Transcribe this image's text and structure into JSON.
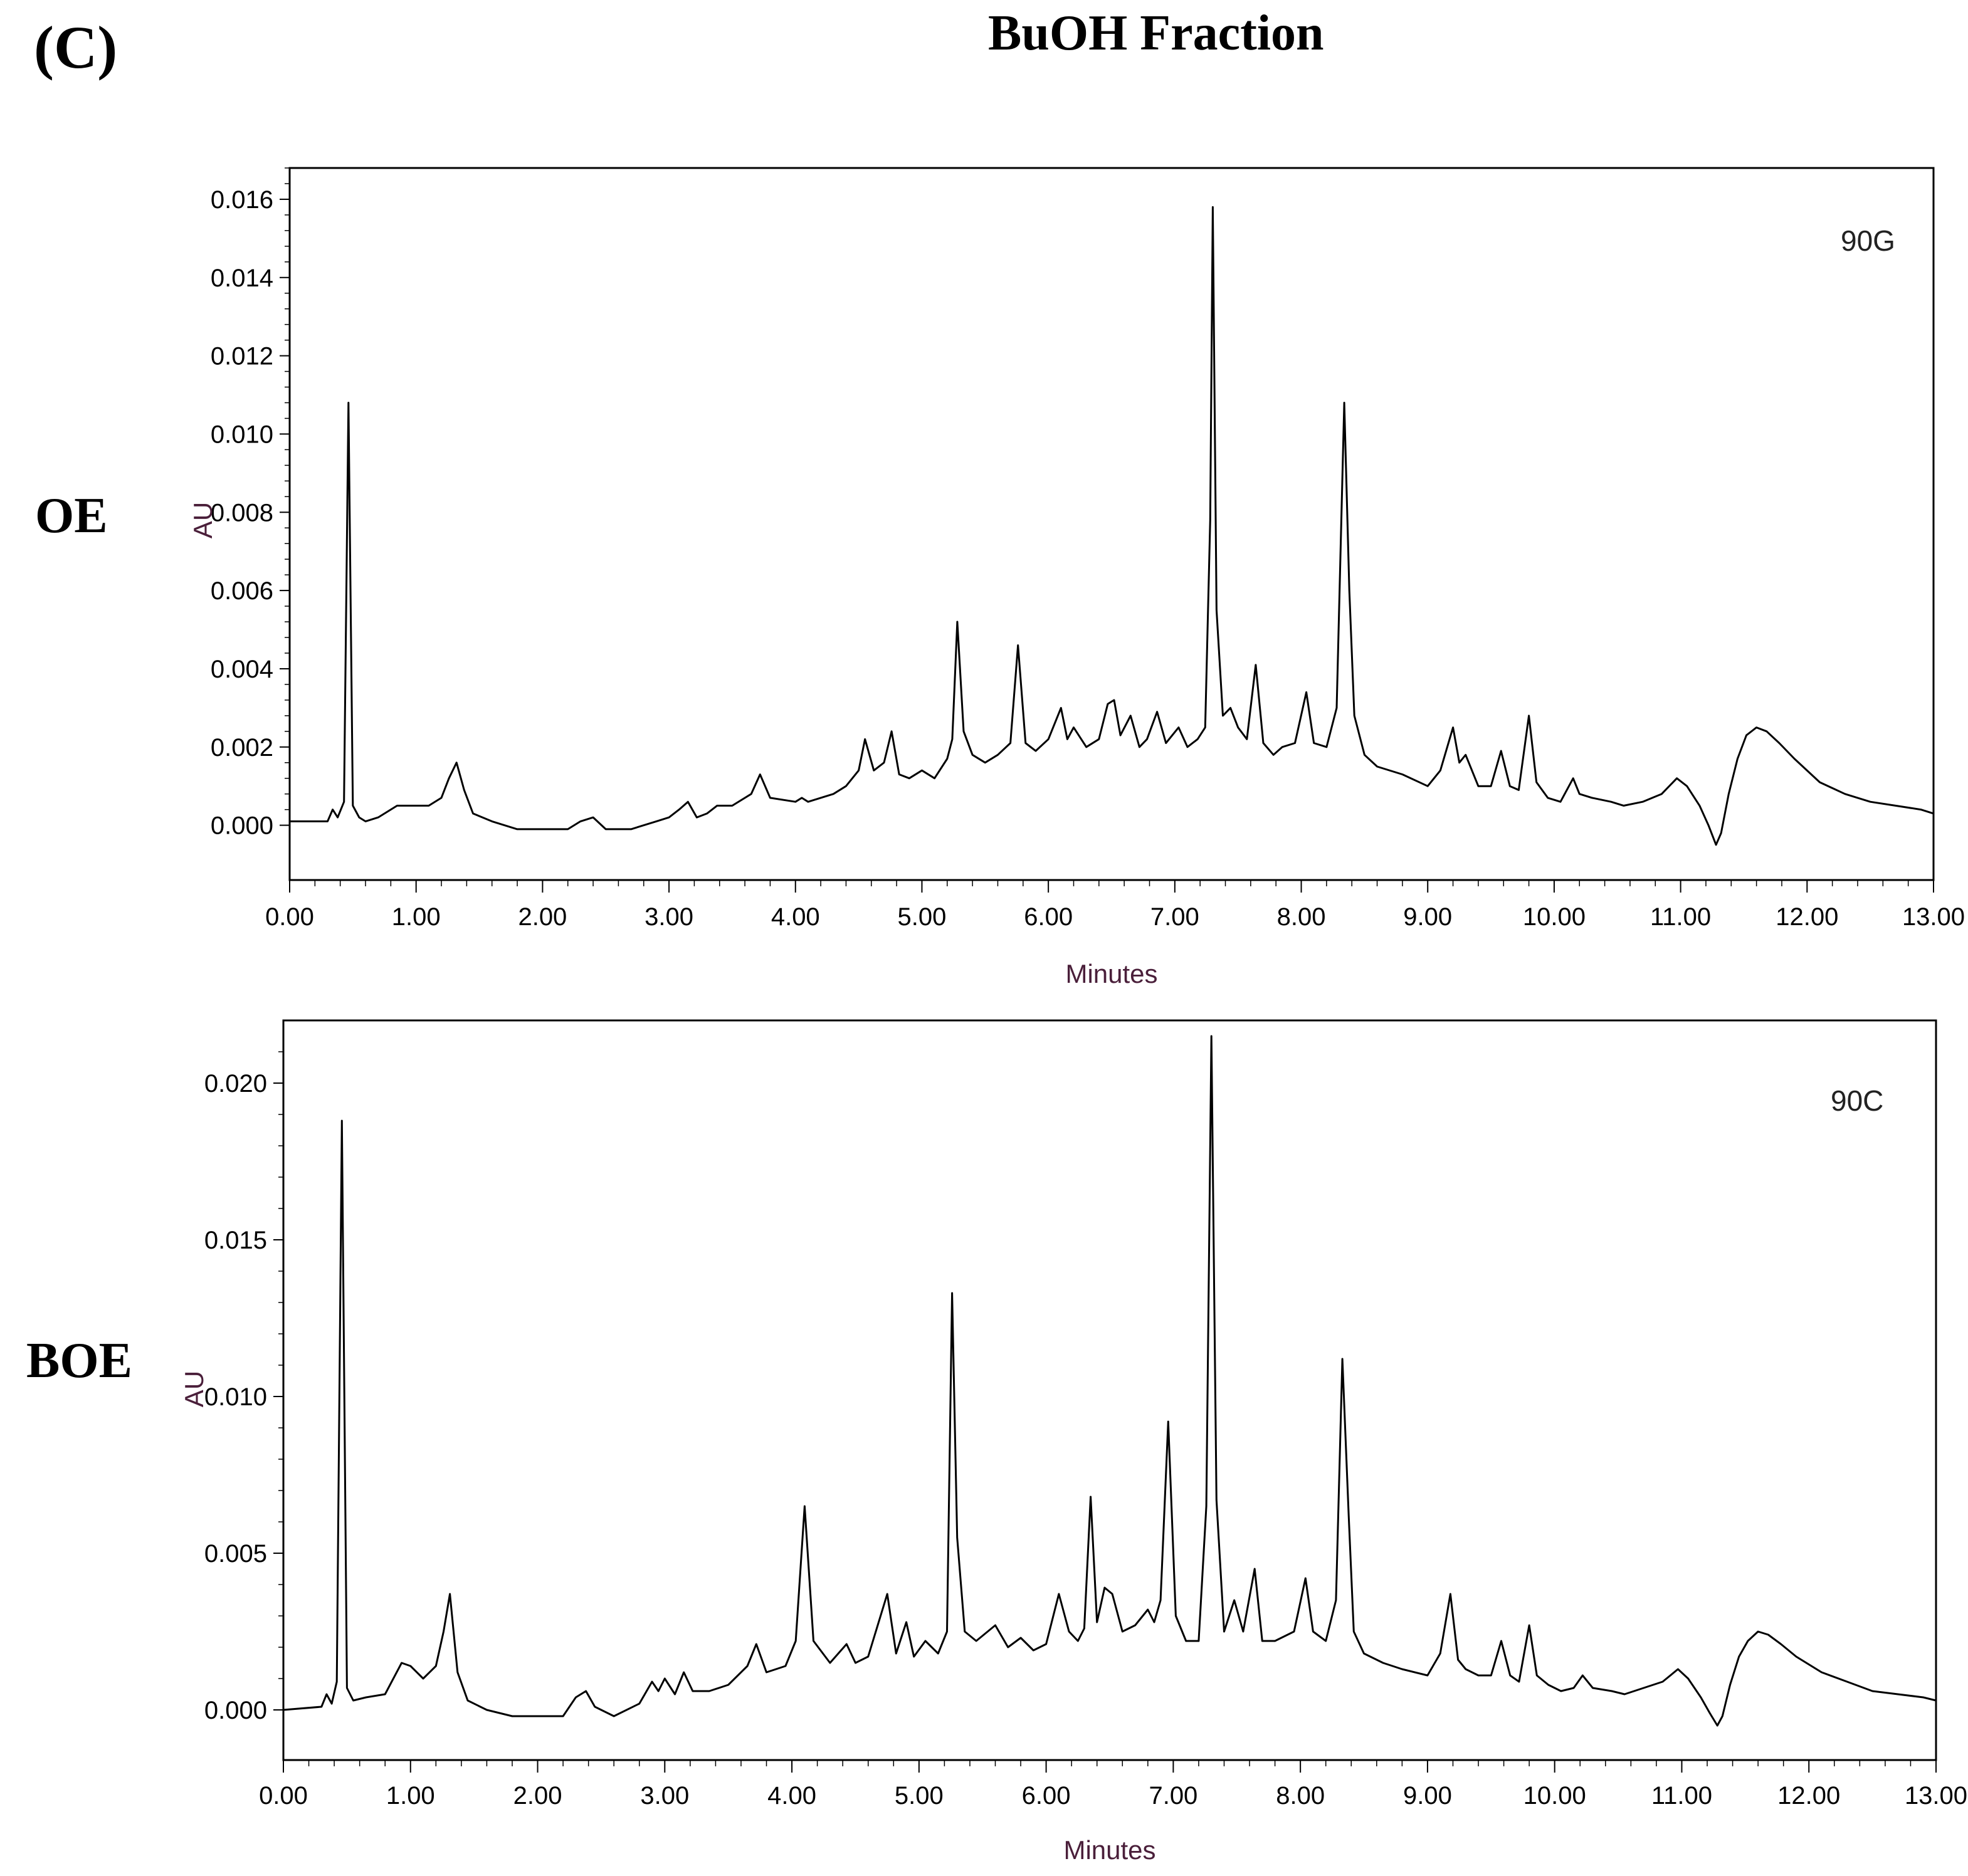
{
  "figure": {
    "panel_label": "(C)",
    "title": "BuOH Fraction",
    "row_labels": [
      "OE",
      "BOE"
    ]
  },
  "chart_data": [
    {
      "type": "line",
      "title": "",
      "annotation": "90G",
      "xlabel": "Minutes",
      "ylabel": "AU",
      "xlim": [
        0,
        13
      ],
      "ylim": [
        -0.0014,
        0.0168
      ],
      "xticks": [
        0,
        1,
        2,
        3,
        4,
        5,
        6,
        7,
        8,
        9,
        10,
        11,
        12,
        13
      ],
      "xtick_labels": [
        "0.00",
        "1.00",
        "2.00",
        "3.00",
        "4.00",
        "5.00",
        "6.00",
        "7.00",
        "8.00",
        "9.00",
        "10.00",
        "11.00",
        "12.00",
        "13.00"
      ],
      "yticks": [
        0,
        0.002,
        0.004,
        0.006,
        0.008,
        0.01,
        0.012,
        0.014,
        0.016
      ],
      "ytick_labels": [
        "0.000",
        "0.002",
        "0.004",
        "0.006",
        "0.008",
        "0.010",
        "0.012",
        "0.014",
        "0.016"
      ],
      "grid": false,
      "line_color": "#000000",
      "axis_label_color": "#4a1f3a",
      "series": [
        {
          "x": [
            0.0,
            0.3,
            0.34,
            0.38,
            0.43,
            0.465,
            0.5,
            0.55,
            0.6,
            0.7,
            0.85,
            0.95,
            1.1,
            1.2,
            1.26,
            1.32,
            1.38,
            1.45,
            1.6,
            1.8,
            2.0,
            2.2,
            2.3,
            2.4,
            2.5,
            2.7,
            2.9,
            3.0,
            3.08,
            3.15,
            3.22,
            3.3,
            3.38,
            3.5,
            3.65,
            3.72,
            3.8,
            4.0,
            4.05,
            4.1,
            4.2,
            4.3,
            4.4,
            4.5,
            4.55,
            4.62,
            4.7,
            4.76,
            4.82,
            4.9,
            5.0,
            5.1,
            5.2,
            5.24,
            5.28,
            5.33,
            5.4,
            5.5,
            5.6,
            5.7,
            5.76,
            5.82,
            5.9,
            6.0,
            6.1,
            6.15,
            6.2,
            6.3,
            6.4,
            6.47,
            6.52,
            6.57,
            6.65,
            6.72,
            6.78,
            6.86,
            6.93,
            7.03,
            7.1,
            7.18,
            7.24,
            7.28,
            7.3,
            7.33,
            7.38,
            7.44,
            7.5,
            7.57,
            7.64,
            7.7,
            7.78,
            7.85,
            7.95,
            8.04,
            8.1,
            8.2,
            8.28,
            8.34,
            8.38,
            8.42,
            8.5,
            8.6,
            8.8,
            9.0,
            9.1,
            9.2,
            9.25,
            9.3,
            9.4,
            9.5,
            9.58,
            9.65,
            9.72,
            9.8,
            9.86,
            9.95,
            10.05,
            10.15,
            10.2,
            10.3,
            10.45,
            10.55,
            10.7,
            10.85,
            10.97,
            11.05,
            11.15,
            11.22,
            11.28,
            11.32,
            11.38,
            11.45,
            11.52,
            11.6,
            11.68,
            11.78,
            11.9,
            12.1,
            12.3,
            12.5,
            12.7,
            12.9,
            13.0
          ],
          "y": [
            0.0001,
            0.0001,
            0.0004,
            0.0002,
            0.0006,
            0.0108,
            0.0005,
            0.0002,
            0.0001,
            0.0002,
            0.0005,
            0.0005,
            0.0005,
            0.0007,
            0.0012,
            0.0016,
            0.0009,
            0.0003,
            0.0001,
            -0.0001,
            -0.0001,
            -0.0001,
            0.0001,
            0.0002,
            -0.0001,
            -0.0001,
            0.0001,
            0.0002,
            0.0004,
            0.0006,
            0.0002,
            0.0003,
            0.0005,
            0.0005,
            0.0008,
            0.0013,
            0.0007,
            0.0006,
            0.0007,
            0.0006,
            0.0007,
            0.0008,
            0.001,
            0.0014,
            0.0022,
            0.0014,
            0.0016,
            0.0024,
            0.0013,
            0.0012,
            0.0014,
            0.0012,
            0.0017,
            0.0022,
            0.0052,
            0.0024,
            0.0018,
            0.0016,
            0.0018,
            0.0021,
            0.0046,
            0.0021,
            0.0019,
            0.0022,
            0.003,
            0.0022,
            0.0025,
            0.002,
            0.0022,
            0.0031,
            0.0032,
            0.0023,
            0.0028,
            0.002,
            0.0022,
            0.0029,
            0.0021,
            0.0025,
            0.002,
            0.0022,
            0.0025,
            0.0078,
            0.0158,
            0.0055,
            0.0028,
            0.003,
            0.0025,
            0.0022,
            0.0041,
            0.0021,
            0.0018,
            0.002,
            0.0021,
            0.0034,
            0.0021,
            0.002,
            0.003,
            0.0108,
            0.006,
            0.0028,
            0.0018,
            0.0015,
            0.0013,
            0.001,
            0.0014,
            0.0025,
            0.0016,
            0.0018,
            0.001,
            0.001,
            0.0019,
            0.001,
            0.0009,
            0.0028,
            0.0011,
            0.0007,
            0.0006,
            0.0012,
            0.0008,
            0.0007,
            0.0006,
            0.0005,
            0.0006,
            0.0008,
            0.0012,
            0.001,
            0.0005,
            0.0,
            -0.0005,
            -0.0002,
            0.0008,
            0.0017,
            0.0023,
            0.0025,
            0.0024,
            0.0021,
            0.0017,
            0.0011,
            0.0008,
            0.0006,
            0.0005,
            0.0004,
            0.0003
          ]
        }
      ]
    },
    {
      "type": "line",
      "title": "",
      "annotation": "90C",
      "xlabel": "Minutes",
      "ylabel": "AU",
      "xlim": [
        0,
        13
      ],
      "ylim": [
        -0.0016,
        0.022
      ],
      "xticks": [
        0,
        1,
        2,
        3,
        4,
        5,
        6,
        7,
        8,
        9,
        10,
        11,
        12,
        13
      ],
      "xtick_labels": [
        "0.00",
        "1.00",
        "2.00",
        "3.00",
        "4.00",
        "5.00",
        "6.00",
        "7.00",
        "8.00",
        "9.00",
        "10.00",
        "11.00",
        "12.00",
        "13.00"
      ],
      "yticks": [
        0,
        0.005,
        0.01,
        0.015,
        0.02
      ],
      "ytick_labels": [
        "0.000",
        "0.005",
        "0.010",
        "0.015",
        "0.020"
      ],
      "grid": false,
      "line_color": "#000000",
      "axis_label_color": "#4a1f3a",
      "series": [
        {
          "x": [
            0.0,
            0.3,
            0.34,
            0.38,
            0.42,
            0.46,
            0.5,
            0.55,
            0.65,
            0.8,
            0.93,
            1.0,
            1.1,
            1.2,
            1.26,
            1.31,
            1.37,
            1.45,
            1.6,
            1.8,
            2.0,
            2.2,
            2.3,
            2.38,
            2.45,
            2.6,
            2.8,
            2.9,
            2.95,
            3.0,
            3.08,
            3.15,
            3.22,
            3.35,
            3.5,
            3.65,
            3.72,
            3.8,
            3.95,
            4.03,
            4.1,
            4.17,
            4.3,
            4.43,
            4.5,
            4.6,
            4.75,
            4.82,
            4.9,
            4.96,
            5.05,
            5.15,
            5.22,
            5.26,
            5.3,
            5.36,
            5.45,
            5.6,
            5.7,
            5.8,
            5.9,
            6.0,
            6.1,
            6.18,
            6.25,
            6.3,
            6.35,
            6.4,
            6.46,
            6.52,
            6.6,
            6.7,
            6.8,
            6.85,
            6.9,
            6.96,
            7.02,
            7.1,
            7.2,
            7.26,
            7.3,
            7.34,
            7.4,
            7.48,
            7.55,
            7.64,
            7.7,
            7.8,
            7.95,
            8.04,
            8.1,
            8.2,
            8.28,
            8.33,
            8.38,
            8.42,
            8.5,
            8.65,
            8.8,
            9.0,
            9.1,
            9.18,
            9.24,
            9.3,
            9.4,
            9.5,
            9.58,
            9.65,
            9.72,
            9.8,
            9.86,
            9.95,
            10.05,
            10.15,
            10.22,
            10.3,
            10.45,
            10.55,
            10.7,
            10.85,
            10.97,
            11.05,
            11.15,
            11.22,
            11.28,
            11.32,
            11.38,
            11.45,
            11.52,
            11.6,
            11.68,
            11.78,
            11.9,
            12.1,
            12.3,
            12.5,
            12.7,
            12.9,
            13.0
          ],
          "y": [
            0.0,
            0.0001,
            0.0005,
            0.0002,
            0.0009,
            0.0188,
            0.0007,
            0.0003,
            0.0004,
            0.0005,
            0.0015,
            0.0014,
            0.001,
            0.0014,
            0.0025,
            0.0037,
            0.0012,
            0.0003,
            0.0,
            -0.0002,
            -0.0002,
            -0.0002,
            0.0004,
            0.0006,
            0.0001,
            -0.0002,
            0.0002,
            0.0009,
            0.0006,
            0.001,
            0.0005,
            0.0012,
            0.0006,
            0.0006,
            0.0008,
            0.0014,
            0.0021,
            0.0012,
            0.0014,
            0.0022,
            0.0065,
            0.0022,
            0.0015,
            0.0021,
            0.0015,
            0.0017,
            0.0037,
            0.0018,
            0.0028,
            0.0017,
            0.0022,
            0.0018,
            0.0025,
            0.0133,
            0.0055,
            0.0025,
            0.0022,
            0.0027,
            0.002,
            0.0023,
            0.0019,
            0.0021,
            0.0037,
            0.0025,
            0.0022,
            0.0026,
            0.0068,
            0.0028,
            0.0039,
            0.0037,
            0.0025,
            0.0027,
            0.0032,
            0.0028,
            0.0035,
            0.0092,
            0.003,
            0.0022,
            0.0022,
            0.0065,
            0.0215,
            0.0067,
            0.0025,
            0.0035,
            0.0025,
            0.0045,
            0.0022,
            0.0022,
            0.0025,
            0.0042,
            0.0025,
            0.0022,
            0.0035,
            0.0112,
            0.0062,
            0.0025,
            0.0018,
            0.0015,
            0.0013,
            0.0011,
            0.0018,
            0.0037,
            0.0016,
            0.0013,
            0.0011,
            0.0011,
            0.0022,
            0.0011,
            0.0009,
            0.0027,
            0.0011,
            0.0008,
            0.0006,
            0.0007,
            0.0011,
            0.0007,
            0.0006,
            0.0005,
            0.0007,
            0.0009,
            0.0013,
            0.001,
            0.0004,
            -0.0001,
            -0.0005,
            -0.0002,
            0.0008,
            0.0017,
            0.0022,
            0.0025,
            0.0024,
            0.0021,
            0.0017,
            0.0012,
            0.0009,
            0.0006,
            0.0005,
            0.0004,
            0.0003
          ]
        }
      ]
    }
  ]
}
